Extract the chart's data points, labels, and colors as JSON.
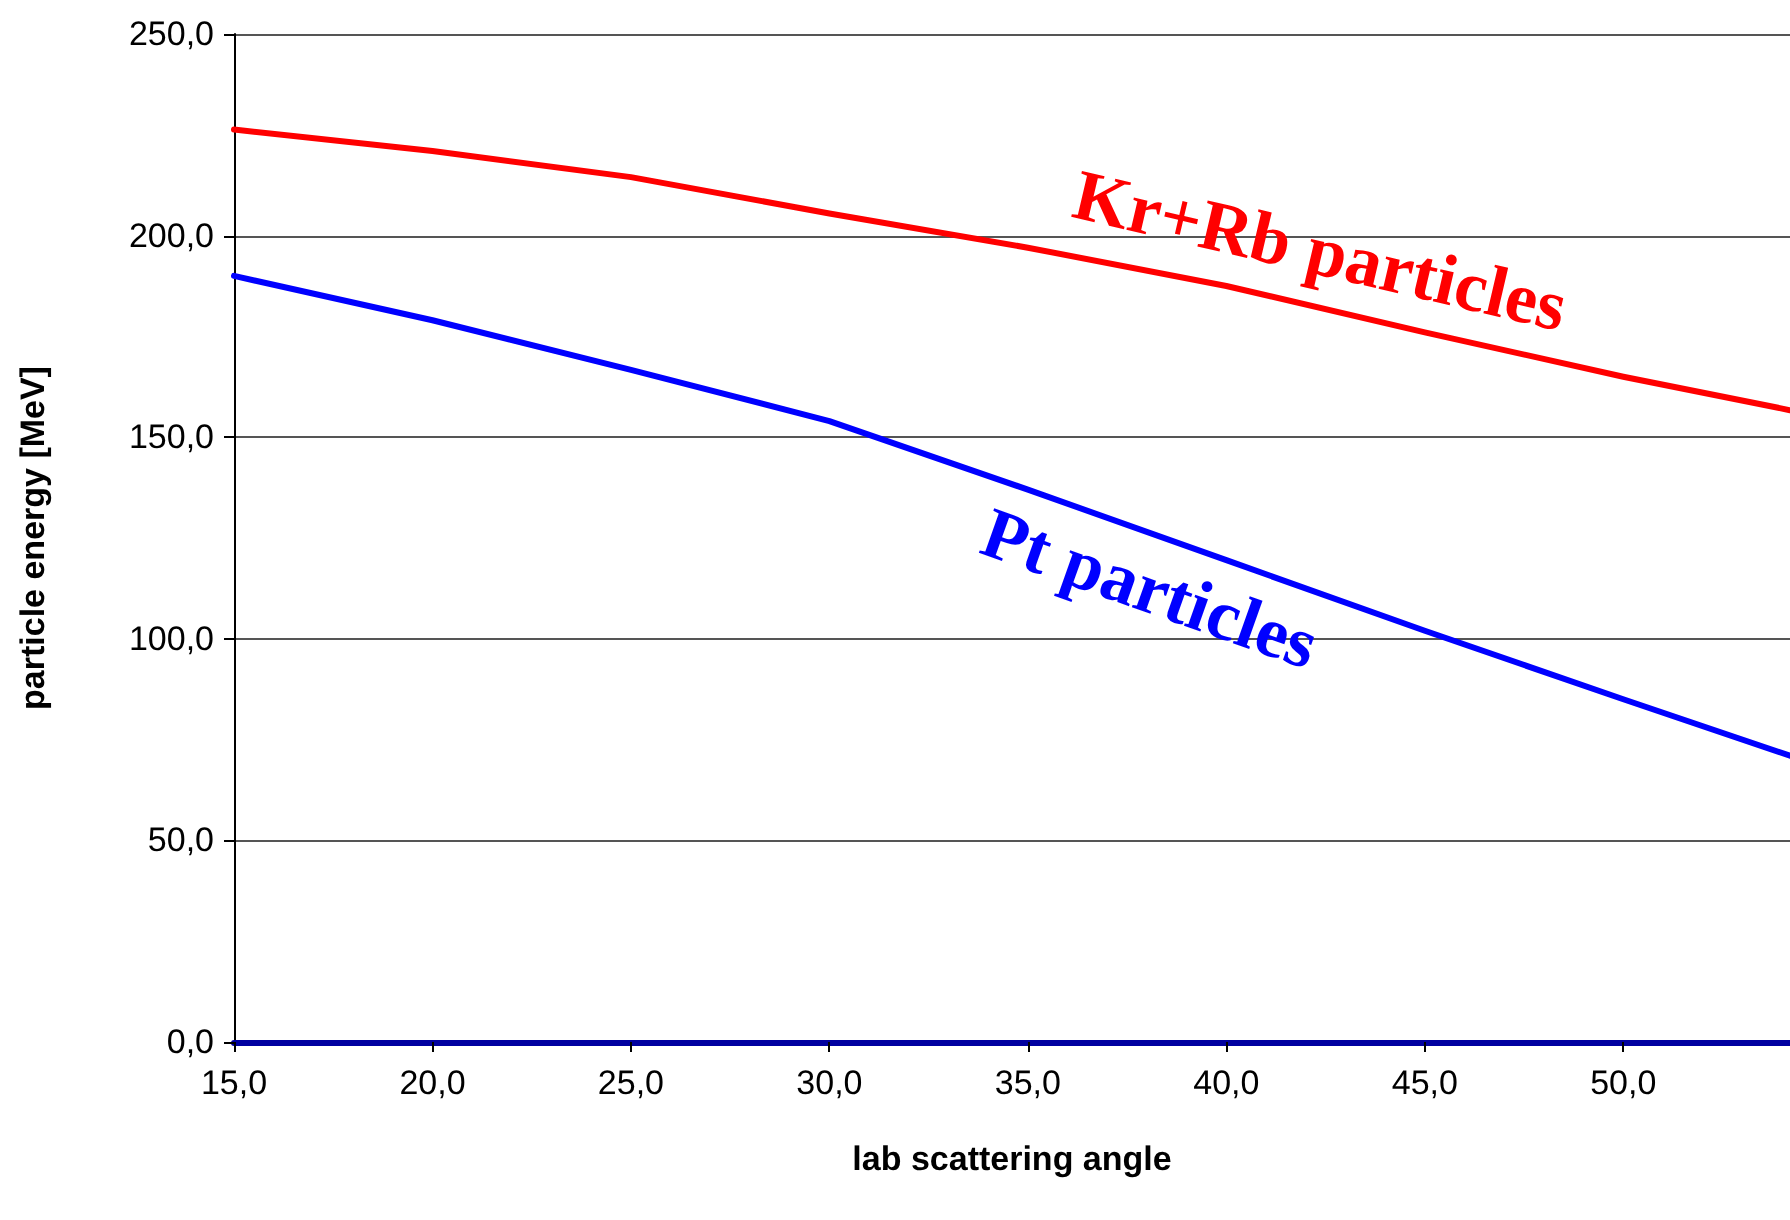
{
  "chart_data": {
    "type": "line",
    "xlabel": "lab scattering angle",
    "ylabel": "particle energy [MeV]",
    "x": [
      15,
      20,
      25,
      30,
      35,
      40,
      45,
      50,
      54.2
    ],
    "series": [
      {
        "name": "Kr+Rb particles",
        "color": "#ff0000",
        "values": [
          226.3,
          221,
          214.5,
          205.5,
          197,
          187.5,
          176,
          165,
          156.7
        ]
      },
      {
        "name": "Pt particles",
        "color": "#0000ff",
        "values": [
          190,
          179,
          166.7,
          154,
          137,
          119.5,
          102,
          85,
          71
        ]
      }
    ],
    "xlim": [
      15,
      54.2
    ],
    "xticks": [
      {
        "value": 15,
        "label": "15,0"
      },
      {
        "value": 20,
        "label": "20,0"
      },
      {
        "value": 25,
        "label": "25,0"
      },
      {
        "value": 30,
        "label": "30,0"
      },
      {
        "value": 35,
        "label": "35,0"
      },
      {
        "value": 40,
        "label": "40,0"
      },
      {
        "value": 45,
        "label": "45,0"
      },
      {
        "value": 50,
        "label": "50,0"
      }
    ],
    "ylim": [
      0,
      250
    ],
    "yticks": [
      {
        "value": 0,
        "label": "0,0"
      },
      {
        "value": 50,
        "label": "50,0"
      },
      {
        "value": 100,
        "label": "100,0"
      },
      {
        "value": 150,
        "label": "150,0"
      },
      {
        "value": 200,
        "label": "200,0"
      },
      {
        "value": 250,
        "label": "250,0"
      }
    ],
    "grid": "y",
    "legend": false,
    "marker": "none",
    "line_style": "solid"
  }
}
